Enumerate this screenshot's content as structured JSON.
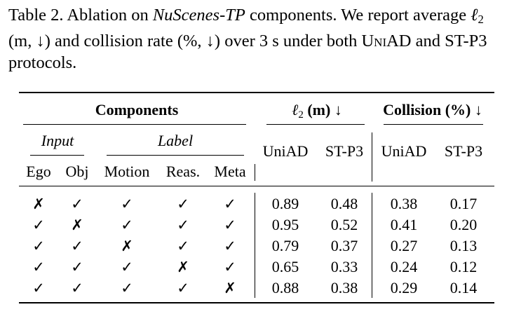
{
  "caption": {
    "label": "Table 2.",
    "text_a": " Ablation on ",
    "dataset": "NuScenes-TP",
    "text_b": " components. We report average ",
    "l2_symbol": "ℓ",
    "l2_sub": "2",
    "text_c": " (m, ↓) and collision rate (%, ↓) over 3 s under both ",
    "uniad": "UniAD",
    "text_d": " and ST-P3 protocols."
  },
  "table": {
    "group_headers": {
      "components": "Components",
      "l2_symbol": "ℓ",
      "l2_sub": "2",
      "l2_rest": " (m) ↓",
      "collision": "Collision (%) ↓"
    },
    "sub_headers": {
      "input": "Input",
      "label": "Label"
    },
    "columns": [
      "Ego",
      "Obj",
      "Motion",
      "Reas.",
      "Meta",
      "UniAD",
      "ST-P3",
      "UniAD",
      "ST-P3"
    ],
    "rows": [
      [
        "✗",
        "✓",
        "✓",
        "✓",
        "✓",
        "0.89",
        "0.48",
        "0.38",
        "0.17"
      ],
      [
        "✓",
        "✗",
        "✓",
        "✓",
        "✓",
        "0.95",
        "0.52",
        "0.41",
        "0.20"
      ],
      [
        "✓",
        "✓",
        "✗",
        "✓",
        "✓",
        "0.79",
        "0.37",
        "0.27",
        "0.13"
      ],
      [
        "✓",
        "✓",
        "✓",
        "✗",
        "✓",
        "0.65",
        "0.33",
        "0.24",
        "0.12"
      ],
      [
        "✓",
        "✓",
        "✓",
        "✓",
        "✗",
        "0.88",
        "0.38",
        "0.29",
        "0.14"
      ]
    ]
  }
}
